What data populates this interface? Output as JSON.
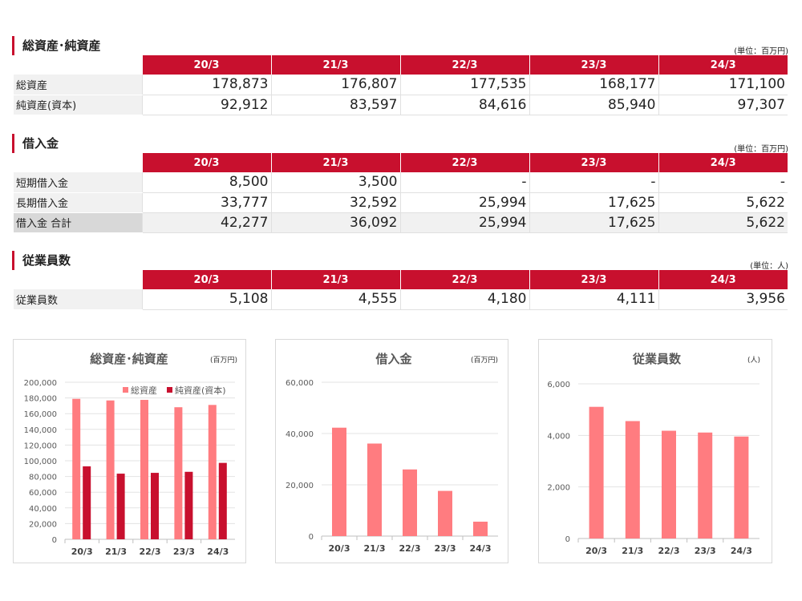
{
  "years": [
    "20/3",
    "21/3",
    "22/3",
    "23/3",
    "24/3"
  ],
  "assets": {
    "title": "総資産･純資産",
    "unit": "(単位：百万円)",
    "rows": [
      {
        "label": "総資産",
        "values": [
          "178,873",
          "176,807",
          "177,535",
          "168,177",
          "171,100"
        ]
      },
      {
        "label": "純資産(資本)",
        "values": [
          "92,912",
          "83,597",
          "84,616",
          "85,940",
          "97,307"
        ]
      }
    ]
  },
  "debt": {
    "title": "借入金",
    "unit": "(単位：百万円)",
    "rows": [
      {
        "label": "短期借入金",
        "values": [
          "8,500",
          "3,500",
          "-",
          "-",
          "-"
        ]
      },
      {
        "label": "長期借入金",
        "values": [
          "33,777",
          "32,592",
          "25,994",
          "17,625",
          "5,622"
        ]
      },
      {
        "label": "借入金 合計",
        "values": [
          "42,277",
          "36,092",
          "25,994",
          "17,625",
          "5,622"
        ]
      }
    ]
  },
  "staff": {
    "title": "従業員数",
    "unit": "(単位：人)",
    "rows": [
      {
        "label": "従業員数",
        "values": [
          "5,108",
          "4,555",
          "4,180",
          "4,111",
          "3,956"
        ]
      }
    ]
  },
  "colors": {
    "accent": "#c8102e",
    "light": "#ff7c80"
  },
  "chart_data": [
    {
      "type": "bar",
      "title": "総資産･純資産",
      "unit": "(百万円)",
      "categories": [
        "20/3",
        "21/3",
        "22/3",
        "23/3",
        "24/3"
      ],
      "ylim": [
        0,
        200000
      ],
      "yticks": [
        "0",
        "20,000",
        "40,000",
        "60,000",
        "80,000",
        "100,000",
        "120,000",
        "140,000",
        "160,000",
        "180,000",
        "200,000"
      ],
      "legend": "top-right",
      "series": [
        {
          "name": "総資産",
          "values": [
            178873,
            176807,
            177535,
            168177,
            171100
          ]
        },
        {
          "name": "純資産(資本)",
          "values": [
            92912,
            83597,
            84616,
            85940,
            97307
          ]
        }
      ]
    },
    {
      "type": "bar",
      "title": "借入金",
      "unit": "(百万円)",
      "categories": [
        "20/3",
        "21/3",
        "22/3",
        "23/3",
        "24/3"
      ],
      "ylim": [
        0,
        60000
      ],
      "yticks": [
        "0",
        "20,000",
        "40,000",
        "60,000"
      ],
      "series": [
        {
          "name": "借入金 合計",
          "values": [
            42277,
            36092,
            25994,
            17625,
            5622
          ]
        }
      ]
    },
    {
      "type": "bar",
      "title": "従業員数",
      "unit": "(人)",
      "categories": [
        "20/3",
        "21/3",
        "22/3",
        "23/3",
        "24/3"
      ],
      "ylim": [
        0,
        6000
      ],
      "yticks": [
        "0",
        "2,000",
        "4,000",
        "6,000"
      ],
      "series": [
        {
          "name": "従業員数",
          "values": [
            5108,
            4555,
            4180,
            4111,
            3956
          ]
        }
      ]
    }
  ]
}
